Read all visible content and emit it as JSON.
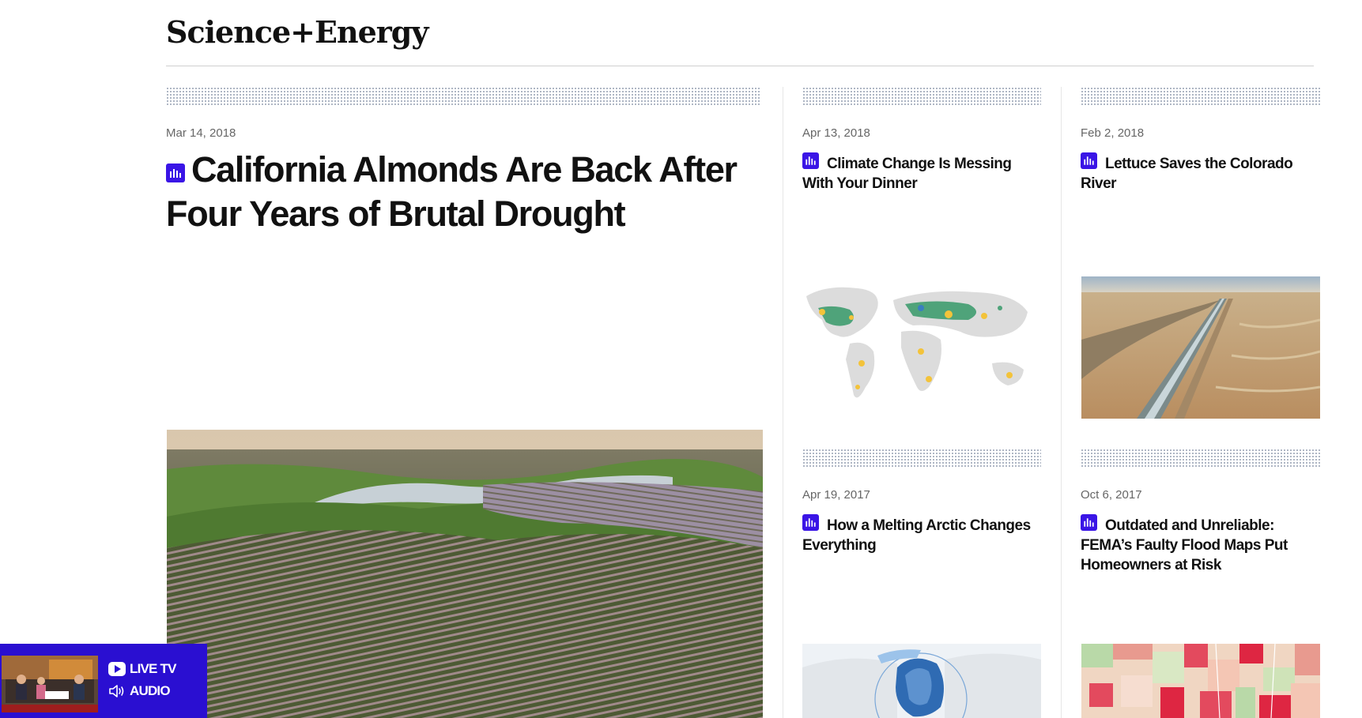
{
  "section": {
    "title": "Science+Energy"
  },
  "stories": {
    "lead": {
      "date": "Mar 14, 2018",
      "headline": "California Almonds Are Back After Four Years of Brutal Drought",
      "icon": "audio-story-icon"
    },
    "col2_top": {
      "date": "Apr 13, 2018",
      "headline": "Climate Change Is Messing With Your Dinner",
      "icon": "audio-story-icon"
    },
    "col3_top": {
      "date": "Feb 2, 2018",
      "headline": "Lettuce Saves the Colorado River",
      "icon": "audio-story-icon"
    },
    "col2_bottom": {
      "date": "Apr 19, 2017",
      "headline": "How a Melting Arctic Changes Everything",
      "icon": "audio-story-icon"
    },
    "col3_bottom": {
      "date": "Oct 6, 2017",
      "headline": "Outdated and Unreliable: FEMA’s Faulty Flood Maps Put Homeowners at Risk",
      "icon": "audio-story-icon"
    }
  },
  "live_widget": {
    "live_tv_label": "LIVE TV",
    "audio_label": "AUDIO",
    "accent": "#2a0fd1"
  },
  "colors": {
    "accent": "#3a15e6",
    "text": "#111111",
    "date": "#666666"
  }
}
